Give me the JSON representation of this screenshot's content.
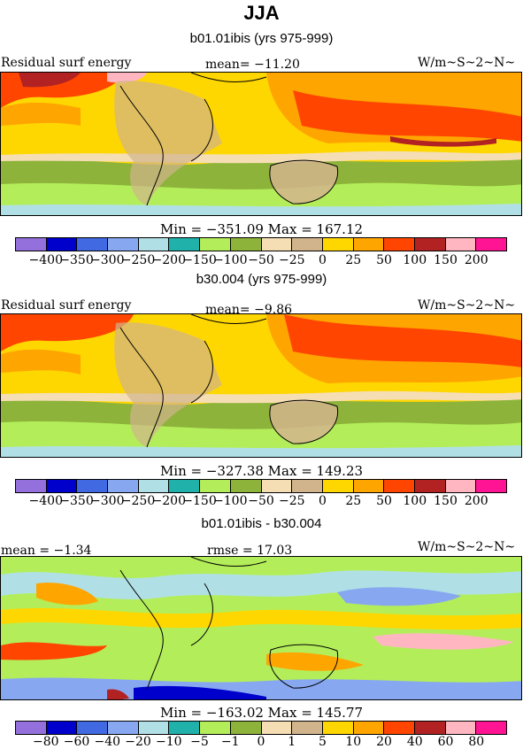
{
  "title": "JJA",
  "colors": [
    "#9370db",
    "#0000cd",
    "#4169e1",
    "#87a8f0",
    "#b0e0e6",
    "#20b2aa",
    "#b3ee5a",
    "#8db33a",
    "#f5deb3",
    "#d2b48c",
    "#ffd700",
    "#ffa500",
    "#ff4500",
    "#b22222",
    "#ffb6c1",
    "#ff1493"
  ],
  "panels": [
    {
      "subtitle": "b01.01ibis (yrs 975-999)",
      "left": "Residual surf energy",
      "center": "mean=  −11.20",
      "right": "W/m~S~2~N~",
      "minmax": "Min = −351.09 Max = 167.12",
      "ticks": [
        "−400",
        "−350",
        "−300",
        "−250",
        "−200",
        "−150",
        "−100",
        "−50",
        "−25",
        "0",
        "25",
        "50",
        "100",
        "150",
        "200"
      ]
    },
    {
      "subtitle": "b30.004 (yrs 975-999)",
      "left": "Residual surf energy",
      "center": "mean=   −9.86",
      "right": "W/m~S~2~N~",
      "minmax": "Min = −327.38 Max = 149.23",
      "ticks": [
        "−400",
        "−350",
        "−300",
        "−250",
        "−200",
        "−150",
        "−100",
        "−50",
        "−25",
        "0",
        "25",
        "50",
        "100",
        "150",
        "200"
      ]
    },
    {
      "subtitle": "b01.01ibis - b30.004",
      "left": "mean =   −1.34",
      "center": "rmse =   17.03",
      "right": "W/m~S~2~N~",
      "minmax": "Min = −163.02 Max = 145.77",
      "ticks": [
        "−80",
        "−60",
        "−40",
        "−20",
        "−10",
        "−5",
        "−1",
        "0",
        "1",
        "5",
        "10",
        "20",
        "40",
        "60",
        "80"
      ]
    }
  ]
}
